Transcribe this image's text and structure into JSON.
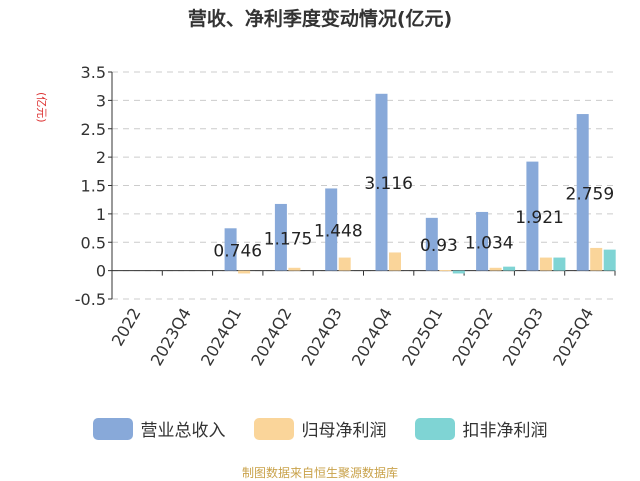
{
  "chart_data": {
    "type": "bar",
    "title": "营收、净利季度变动情况(亿元)",
    "ylabel": "(亿元)",
    "ylim": [
      -0.5,
      3.5
    ],
    "yticks": [
      "-0.5",
      "0",
      "0.5",
      "1",
      "1.5",
      "2",
      "2.5",
      "3",
      "3.5"
    ],
    "grid": true,
    "legend_position": "bottom",
    "categories": [
      "2022",
      "2023Q4",
      "2024Q1",
      "2024Q2",
      "2024Q3",
      "2024Q4",
      "2025Q1",
      "2025Q2",
      "2025Q3",
      "2025Q4"
    ],
    "series": [
      {
        "name": "营业总收入",
        "color": "#88a9d9",
        "values": [
          null,
          null,
          0.746,
          1.175,
          1.448,
          3.116,
          0.93,
          1.034,
          1.921,
          2.759
        ],
        "labels": [
          "",
          "",
          "0.746",
          "1.175",
          "1.448",
          "3.116",
          "0.93",
          "1.034",
          "1.921",
          "2.759"
        ]
      },
      {
        "name": "归母净利润",
        "color": "#fad59a",
        "values": [
          null,
          null,
          -0.05,
          0.05,
          0.23,
          0.32,
          0.01,
          0.05,
          0.23,
          0.4
        ]
      },
      {
        "name": "扣非净利润",
        "color": "#7fd4d4",
        "values": [
          null,
          null,
          null,
          null,
          null,
          null,
          -0.05,
          0.07,
          0.23,
          0.37
        ]
      }
    ]
  },
  "source": "制图数据来自恒生聚源数据库"
}
